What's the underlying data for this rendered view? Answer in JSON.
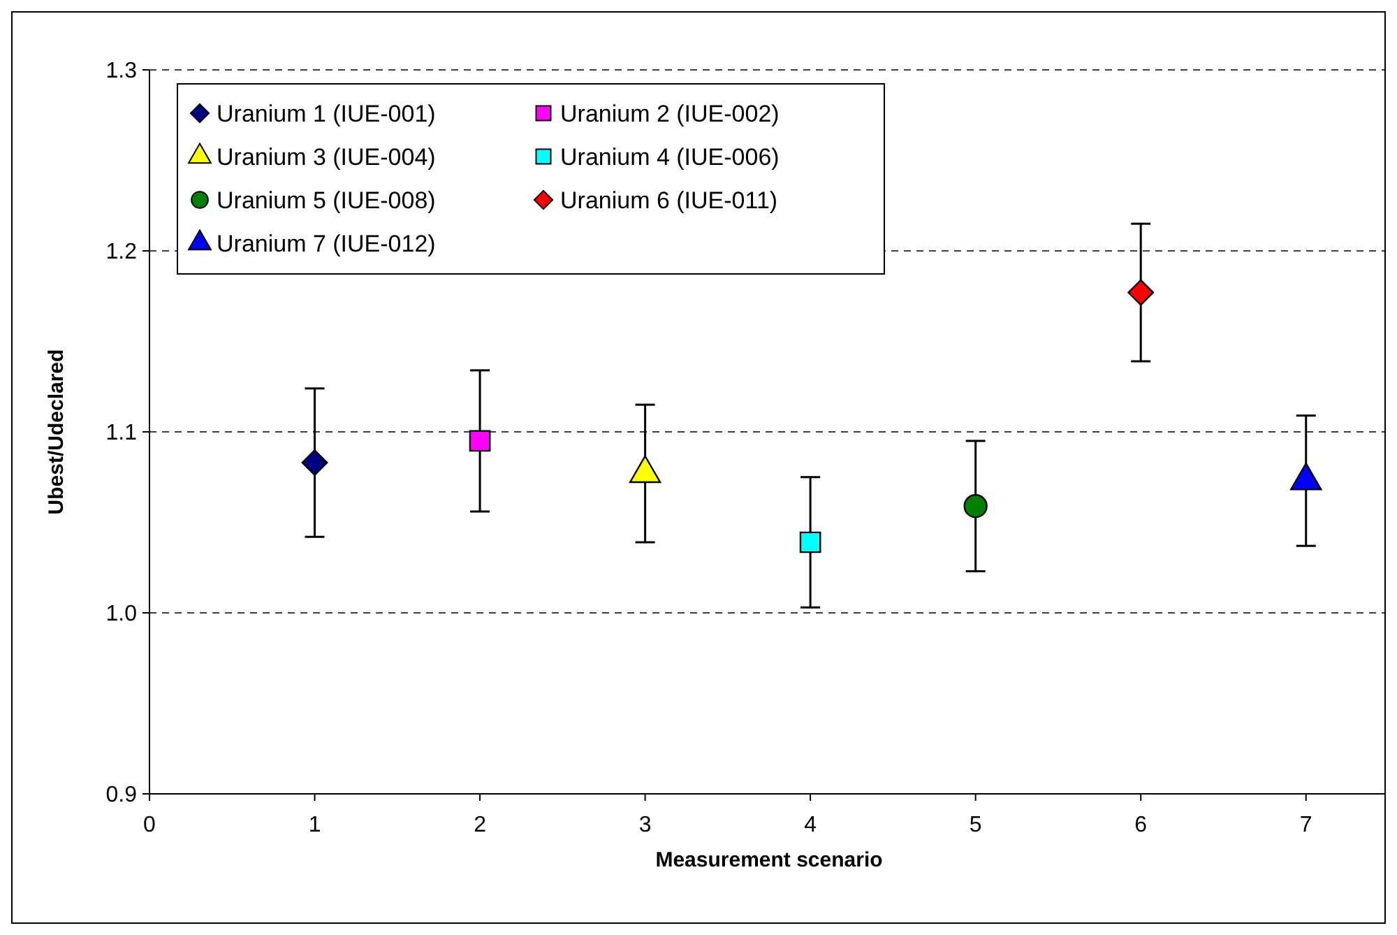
{
  "chart_data": {
    "type": "scatter",
    "xlabel": "Measurement scenario",
    "ylabel": "Ubest/Udeclared",
    "xlim": [
      0,
      7.5
    ],
    "xticks": [
      0,
      1,
      2,
      3,
      4,
      5,
      6,
      7
    ],
    "ylim": [
      0.9,
      1.3
    ],
    "yticks": [
      {
        "value": 0.9,
        "label": "0.9"
      },
      {
        "value": 1.0,
        "label": "1.0"
      },
      {
        "value": 1.1,
        "label": "1.1"
      },
      {
        "value": 1.2,
        "label": "1.2"
      },
      {
        "value": 1.3,
        "label": "1.3"
      }
    ],
    "grid": "y",
    "legend": "top left",
    "series": [
      {
        "name": "Uranium 1 (IUE-001)",
        "color": "#000080",
        "marker": "diamond",
        "x": [
          1
        ],
        "values": [
          1.083
        ],
        "errors": [
          0.041
        ]
      },
      {
        "name": "Uranium 2 (IUE-002)",
        "color": "#ff00ff",
        "marker": "square",
        "x": [
          2
        ],
        "values": [
          1.095
        ],
        "errors": [
          0.039
        ]
      },
      {
        "name": "Uranium 3 (IUE-004)",
        "color": "#ffff00",
        "marker": "triangle",
        "x": [
          3
        ],
        "values": [
          1.077
        ],
        "errors": [
          0.038
        ]
      },
      {
        "name": "Uranium 4 (IUE-006)",
        "color": "#00ffff",
        "marker": "square",
        "x": [
          4
        ],
        "values": [
          1.039
        ],
        "errors": [
          0.036
        ]
      },
      {
        "name": "Uranium 5 (IUE-008)",
        "color": "#008000",
        "marker": "circle",
        "x": [
          5
        ],
        "values": [
          1.059
        ],
        "errors": [
          0.036
        ]
      },
      {
        "name": "Uranium 6 (IUE-011)",
        "color": "#ff0000",
        "marker": "diamond",
        "x": [
          6
        ],
        "values": [
          1.177
        ],
        "errors": [
          0.038
        ]
      },
      {
        "name": "Uranium 7 (IUE-012)",
        "color": "#0000ff",
        "marker": "triangle",
        "x": [
          7
        ],
        "values": [
          1.073
        ],
        "errors": [
          0.036
        ]
      }
    ]
  }
}
